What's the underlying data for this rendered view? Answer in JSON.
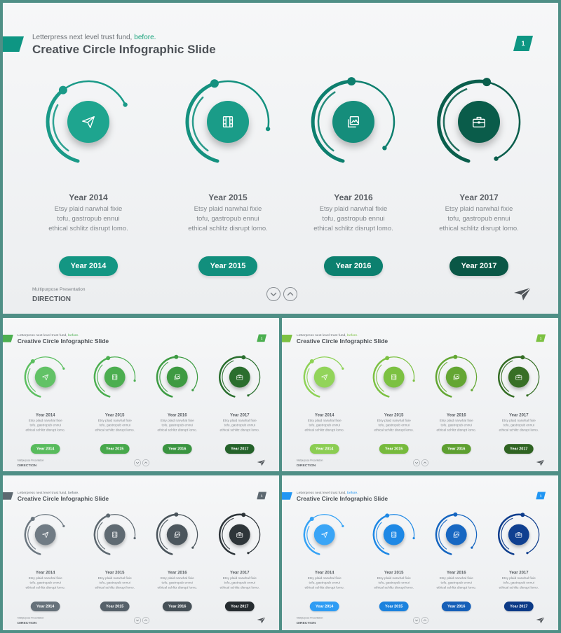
{
  "slides": [
    {
      "name": "teal",
      "subtitle": "Letterpress next level trust fund,",
      "subtitle_highlight": "before.",
      "title": "Creative Circle Infographic Slide",
      "page": "1",
      "accent": "#0e9683",
      "highlight_color": "#1aa37c",
      "ring_colors": [
        "#1a9a88",
        "#14917f",
        "#0d7f6e",
        "#0a5e4c"
      ],
      "circle_colors": [
        "#1ea58f",
        "#1a9c88",
        "#158d7b",
        "#0a5c4a"
      ],
      "pill_colors": [
        "#139683",
        "#118f7d",
        "#0c806f",
        "#0a5746"
      ],
      "footer_small": "Multipurpose Presentation",
      "footer_big": "DIRECTION"
    },
    {
      "name": "green",
      "subtitle": "Letterpress next level trust fund,",
      "subtitle_highlight": "before.",
      "title": "Creative Circle Infographic Slide",
      "page": "1",
      "accent": "#4caf50",
      "highlight_color": "#4caf50",
      "ring_colors": [
        "#5cbf60",
        "#4caf50",
        "#3d9b42",
        "#2a6f2e"
      ],
      "circle_colors": [
        "#62c266",
        "#4cae50",
        "#3e9a42",
        "#2b6e2e"
      ],
      "pill_colors": [
        "#58bb5c",
        "#47a84b",
        "#3a9440",
        "#24622a"
      ],
      "footer_small": "Multipurpose Presentation",
      "footer_big": "DIRECTION"
    },
    {
      "name": "lime",
      "subtitle": "Letterpress next level trust fund,",
      "subtitle_highlight": "before.",
      "title": "Creative Circle Infographic Slide",
      "page": "1",
      "accent": "#7cc142",
      "highlight_color": "#7cc142",
      "ring_colors": [
        "#8ed256",
        "#7cc142",
        "#63a732",
        "#356e25"
      ],
      "circle_colors": [
        "#92d45a",
        "#7cc142",
        "#64a633",
        "#386f26"
      ],
      "pill_colors": [
        "#8bcd52",
        "#76ba3c",
        "#5d9f30",
        "#2f6322"
      ],
      "footer_small": "Multipurpose Presentation",
      "footer_big": "DIRECTION"
    },
    {
      "name": "slate",
      "subtitle": "Letterpress next level trust fund,",
      "subtitle_highlight": "before.",
      "title": "Creative Circle Infographic Slide",
      "page": "1",
      "accent": "#5d6870",
      "highlight_color": "#5d6870",
      "ring_colors": [
        "#6c7780",
        "#5d6870",
        "#4a545b",
        "#2c3338"
      ],
      "circle_colors": [
        "#707b84",
        "#5f6a72",
        "#4c565d",
        "#2e3539"
      ],
      "pill_colors": [
        "#66717a",
        "#56616a",
        "#465057",
        "#262c30"
      ],
      "footer_small": "Multipurpose Presentation",
      "footer_big": "DIRECTION"
    },
    {
      "name": "blue",
      "subtitle": "Letterpress next level trust fund,",
      "subtitle_highlight": "before.",
      "title": "Creative Circle Infographic Slide",
      "page": "1",
      "accent": "#2196f3",
      "highlight_color": "#2196f3",
      "ring_colors": [
        "#35a2f5",
        "#1e88e5",
        "#1565c0",
        "#0d3c8c"
      ],
      "circle_colors": [
        "#3aa5f6",
        "#1e88e5",
        "#1767c2",
        "#0f3f90"
      ],
      "pill_colors": [
        "#2e9cf4",
        "#1b82de",
        "#155fb8",
        "#0c3a86"
      ],
      "footer_small": "Multipurpose Presentation",
      "footer_big": "DIRECTION"
    }
  ],
  "years": [
    {
      "heading": "Year 2014",
      "lines": [
        "Etsy plaid  narwhal fixie",
        "tofu, gastropub ennui",
        "ethical schlitz disrupt lomo."
      ],
      "button": "Year 2014",
      "icon": "paper-plane-icon"
    },
    {
      "heading": "Year 2015",
      "lines": [
        "Etsy plaid  narwhal fixie",
        "tofu, gastropub ennui",
        "ethical schlitz disrupt lomo."
      ],
      "button": "Year 2015",
      "icon": "film-icon"
    },
    {
      "heading": "Year 2016",
      "lines": [
        "Etsy plaid  narwhal fixie",
        "tofu, gastropub ennui",
        "ethical schlitz disrupt lomo."
      ],
      "button": "Year 2016",
      "icon": "photos-icon"
    },
    {
      "heading": "Year 2017",
      "lines": [
        "Etsy plaid  narwhal fixie",
        "tofu, gastropub ennui",
        "ethical schlitz disrupt lomo."
      ],
      "button": "Year 2017",
      "icon": "briefcase-icon"
    }
  ],
  "ring_sweeps_deg": [
    230,
    265,
    295,
    320
  ]
}
